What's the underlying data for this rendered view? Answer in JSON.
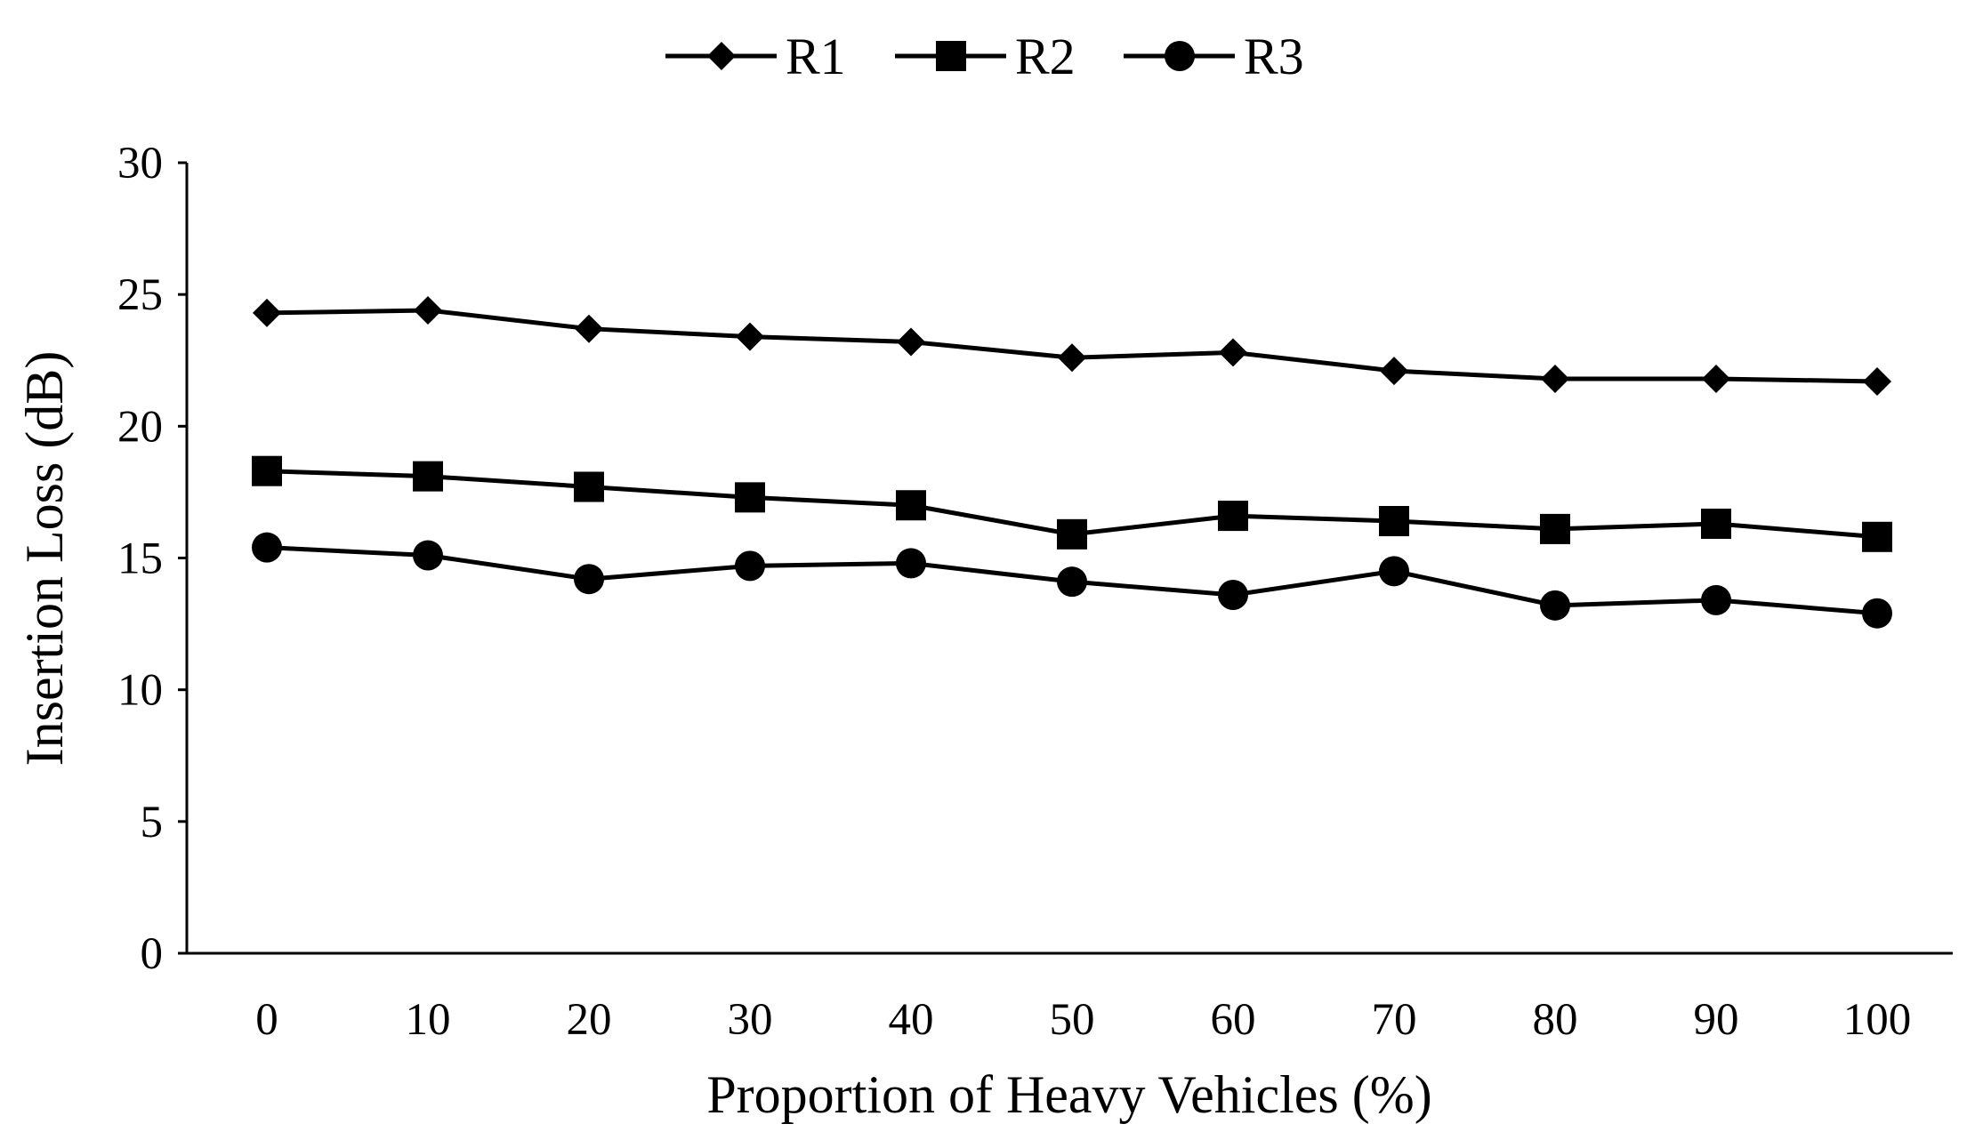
{
  "chart_data": {
    "type": "line",
    "title": "",
    "xlabel": "Proportion of Heavy Vehicles (%)",
    "ylabel": "Insertion Loss (dB)",
    "x": [
      0,
      10,
      20,
      30,
      40,
      50,
      60,
      70,
      80,
      90,
      100
    ],
    "x_tick_labels": [
      "0",
      "10",
      "20",
      "30",
      "40",
      "50",
      "60",
      "70",
      "80",
      "90",
      "100"
    ],
    "ylim": [
      0,
      30
    ],
    "y_ticks": [
      0,
      5,
      10,
      15,
      20,
      25,
      30
    ],
    "y_tick_labels": [
      "0",
      "5",
      "10",
      "15",
      "20",
      "25",
      "30"
    ],
    "grid": false,
    "legend_position": "top-center",
    "series": [
      {
        "name": "R1",
        "marker": "diamond",
        "values": [
          24.3,
          24.4,
          23.7,
          23.4,
          23.2,
          22.6,
          22.8,
          22.1,
          21.8,
          21.8,
          21.7
        ]
      },
      {
        "name": "R2",
        "marker": "square",
        "values": [
          18.3,
          18.1,
          17.7,
          17.3,
          17.0,
          15.9,
          16.6,
          16.4,
          16.1,
          16.3,
          15.8
        ]
      },
      {
        "name": "R3",
        "marker": "circle",
        "values": [
          15.4,
          15.1,
          14.2,
          14.7,
          14.8,
          14.1,
          13.6,
          14.5,
          13.2,
          13.4,
          12.9
        ]
      }
    ],
    "colors": {
      "line": "#000000",
      "marker": "#000000",
      "axis": "#000000"
    }
  }
}
